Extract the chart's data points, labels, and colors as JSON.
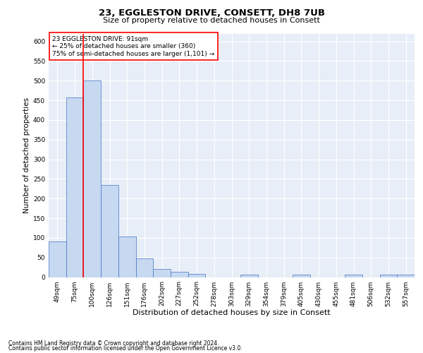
{
  "title_line1": "23, EGGLESTON DRIVE, CONSETT, DH8 7UB",
  "title_line2": "Size of property relative to detached houses in Consett",
  "xlabel": "Distribution of detached houses by size in Consett",
  "ylabel": "Number of detached properties",
  "categories": [
    "49sqm",
    "75sqm",
    "100sqm",
    "126sqm",
    "151sqm",
    "176sqm",
    "202sqm",
    "227sqm",
    "252sqm",
    "278sqm",
    "303sqm",
    "329sqm",
    "354sqm",
    "379sqm",
    "405sqm",
    "430sqm",
    "455sqm",
    "481sqm",
    "506sqm",
    "532sqm",
    "557sqm"
  ],
  "values": [
    90,
    457,
    500,
    234,
    103,
    48,
    20,
    13,
    8,
    0,
    0,
    7,
    0,
    0,
    7,
    0,
    0,
    7,
    0,
    7,
    7
  ],
  "bar_color": "#c6d9f0",
  "bar_edge_color": "#4472c4",
  "vline_x_index": 1.5,
  "vline_color": "#ff0000",
  "annotation_text": "23 EGGLESTON DRIVE: 91sqm\n← 25% of detached houses are smaller (360)\n75% of semi-detached houses are larger (1,101) →",
  "annotation_box_color": "#ffffff",
  "annotation_box_edge": "#ff0000",
  "ylim": [
    0,
    620
  ],
  "yticks": [
    0,
    50,
    100,
    150,
    200,
    250,
    300,
    350,
    400,
    450,
    500,
    550,
    600
  ],
  "plot_bg_color": "#e8eef7",
  "footer_line1": "Contains HM Land Registry data © Crown copyright and database right 2024.",
  "footer_line2": "Contains public sector information licensed under the Open Government Licence v3.0.",
  "title_fontsize": 9.5,
  "subtitle_fontsize": 8,
  "xlabel_fontsize": 8,
  "ylabel_fontsize": 7.5,
  "tick_fontsize": 6.5,
  "annotation_fontsize": 6.5,
  "footer_fontsize": 5.5
}
